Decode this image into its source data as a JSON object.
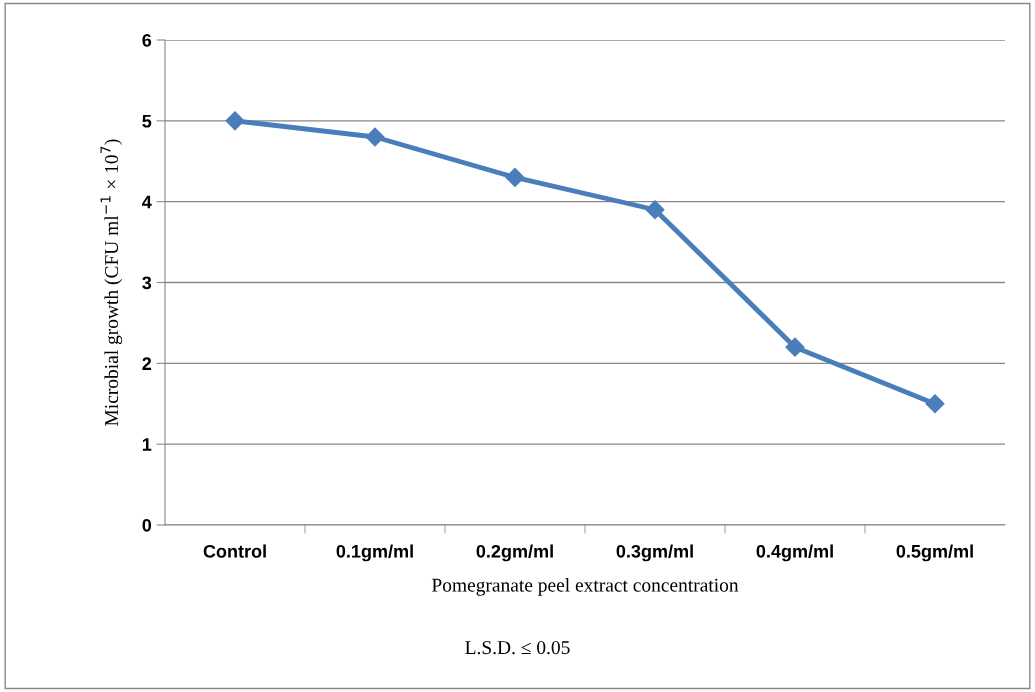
{
  "chart_data": {
    "type": "line",
    "xlabel": "Pomegranate peel extract concentration",
    "ylabel": "Microbial growth (CFU ml$^{−1}$ × 10$^{7}$)",
    "categories": [
      "Control",
      "0.1gm/ml",
      "0.2gm/ml",
      "0.3gm/ml",
      "0.4gm/ml",
      "0.5gm/ml"
    ],
    "series": [
      {
        "color": "#4a7ebb",
        "values": [
          5,
          4.8,
          4.3,
          3.9,
          2.2,
          1.5
        ]
      }
    ],
    "ylim": [
      0,
      6
    ],
    "yticks": [
      0,
      1,
      2,
      3,
      4,
      5,
      6
    ],
    "grid": "y",
    "marker": "diamond",
    "line_style": "solid",
    "annotations": [
      "L.S.D. ≤ 0.05"
    ]
  }
}
